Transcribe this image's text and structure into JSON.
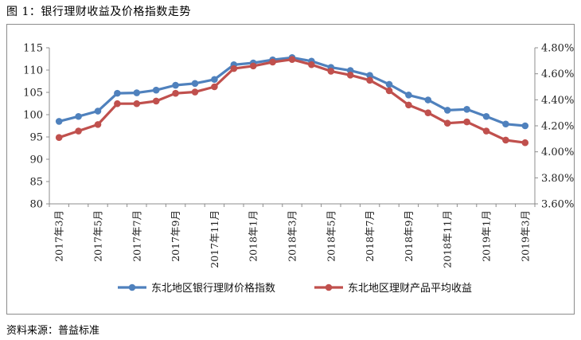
{
  "figure_title": "图 1：银行理财收益及价格指数走势",
  "source": "资料来源：普益标准",
  "chart_data": {
    "type": "line",
    "x": [
      "2017年3月",
      "2017年4月",
      "2017年5月",
      "2017年6月",
      "2017年7月",
      "2017年8月",
      "2017年9月",
      "2017年10月",
      "2017年11月",
      "2017年12月",
      "2018年1月",
      "2018年2月",
      "2018年3月",
      "2018年4月",
      "2018年5月",
      "2018年6月",
      "2018年7月",
      "2018年8月",
      "2018年9月",
      "2018年10月",
      "2018年11月",
      "2018年12月",
      "2019年1月",
      "2019年2月",
      "2019年3月"
    ],
    "x_tick_labels": [
      "2017年3月",
      "2017年5月",
      "2017年7月",
      "2017年9月",
      "2017年11月",
      "2018年1月",
      "2018年3月",
      "2018年5月",
      "2018年7月",
      "2018年9月",
      "2018年11月",
      "2019年1月",
      "2019年3月"
    ],
    "left_axis": {
      "ylim": [
        80,
        115
      ],
      "ticks": [
        "80",
        "85",
        "90",
        "95",
        "100",
        "105",
        "110",
        "115"
      ]
    },
    "right_axis": {
      "ylim": [
        3.6,
        4.8
      ],
      "ticks": [
        "3.60%",
        "3.80%",
        "4.00%",
        "4.20%",
        "4.40%",
        "4.60%",
        "4.80%"
      ]
    },
    "series": [
      {
        "name": "东北地区银行理财价格指数",
        "axis": "left",
        "color": "#4f81bd",
        "values": [
          98.5,
          99.6,
          100.8,
          104.8,
          104.9,
          105.5,
          106.6,
          107.0,
          107.9,
          111.2,
          111.6,
          112.3,
          112.8,
          112.0,
          110.6,
          109.9,
          108.8,
          106.8,
          104.4,
          103.3,
          101.0,
          101.2,
          99.6,
          97.9,
          97.5
        ]
      },
      {
        "name": "东北地区理财产品平均收益",
        "axis": "right",
        "color": "#c0504d",
        "values": [
          4.11,
          4.16,
          4.21,
          4.37,
          4.37,
          4.39,
          4.45,
          4.46,
          4.5,
          4.64,
          4.66,
          4.69,
          4.71,
          4.67,
          4.62,
          4.59,
          4.55,
          4.47,
          4.36,
          4.3,
          4.22,
          4.23,
          4.16,
          4.09,
          4.07
        ]
      }
    ],
    "legend_position": "bottom",
    "grid": false
  }
}
